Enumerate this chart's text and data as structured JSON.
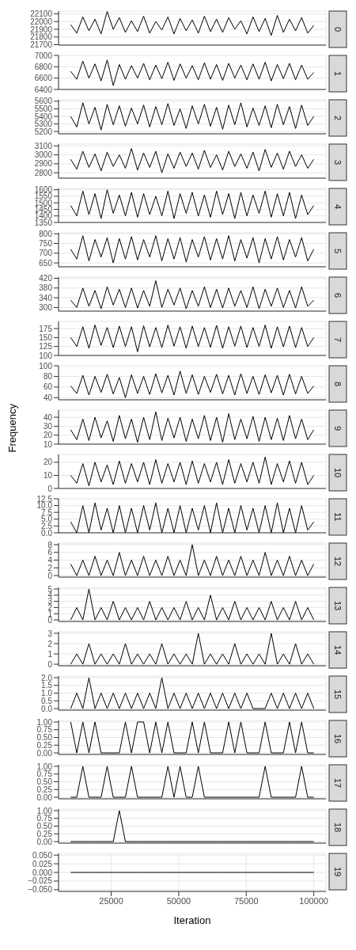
{
  "chart_data": [
    {
      "type": "line",
      "annotations": [
        "0"
      ],
      "color": "#000000",
      "xlim": [
        5500,
        104500
      ],
      "xticks": [
        25000,
        50000,
        75000,
        100000
      ],
      "ylim": [
        21695,
        22135
      ],
      "yticks": [
        21700,
        21800,
        21900,
        22000,
        22100
      ],
      "grid": true,
      "tick_labels": "y",
      "x": [
        10000,
        12250,
        14500,
        16750,
        19000,
        21250,
        23500,
        25750,
        28000,
        30250,
        32500,
        34750,
        37000,
        39250,
        41500,
        43750,
        46000,
        48250,
        50500,
        52750,
        55000,
        57250,
        59500,
        61750,
        64000,
        66250,
        68500,
        70750,
        73000,
        75250,
        77500,
        79750,
        82000,
        84250,
        86500,
        88750,
        91000,
        93250,
        95500,
        97750,
        100000
      ],
      "values": [
        21960,
        21850,
        22060,
        21880,
        22030,
        21840,
        22130,
        21900,
        22050,
        21860,
        22010,
        21870,
        22070,
        21850,
        22000,
        21890,
        22060,
        21840,
        22040,
        21880,
        22020,
        21850,
        22070,
        21870,
        22030,
        21860,
        22050,
        21900,
        22010,
        21840,
        22060,
        21870,
        22040,
        21820,
        22080,
        21860,
        22030,
        21880,
        22050,
        21850,
        21950
      ]
    },
    {
      "type": "line",
      "annotations": [
        "1"
      ],
      "color": "#000000",
      "xlim": [
        5500,
        104500
      ],
      "xticks": [
        25000,
        50000,
        75000,
        100000
      ],
      "ylim": [
        6400,
        7000
      ],
      "yticks": [
        6400,
        6600,
        6800,
        7000
      ],
      "grid": true,
      "tick_labels": "y",
      "x": [
        10000,
        12250,
        14500,
        16750,
        19000,
        21250,
        23500,
        25750,
        28000,
        30250,
        32500,
        34750,
        37000,
        39250,
        41500,
        43750,
        46000,
        48250,
        50500,
        52750,
        55000,
        57250,
        59500,
        61750,
        64000,
        66250,
        68500,
        70750,
        73000,
        75250,
        77500,
        79750,
        82000,
        84250,
        86500,
        88750,
        91000,
        93250,
        95500,
        97750,
        100000
      ],
      "values": [
        6720,
        6580,
        6900,
        6600,
        6850,
        6550,
        6920,
        6470,
        6840,
        6580,
        6820,
        6600,
        6860,
        6570,
        6830,
        6590,
        6880,
        6560,
        6850,
        6600,
        6820,
        6570,
        6870,
        6580,
        6840,
        6560,
        6860,
        6600,
        6830,
        6570,
        6850,
        6580,
        6880,
        6550,
        6840,
        6590,
        6860,
        6570,
        6830,
        6580,
        6700
      ]
    },
    {
      "type": "line",
      "annotations": [
        "2"
      ],
      "color": "#000000",
      "xlim": [
        5500,
        104500
      ],
      "xticks": [
        25000,
        50000,
        75000,
        100000
      ],
      "ylim": [
        5170,
        5620
      ],
      "yticks": [
        5200,
        5300,
        5400,
        5500,
        5600
      ],
      "grid": true,
      "tick_labels": "y",
      "x": [
        10000,
        12250,
        14500,
        16750,
        19000,
        21250,
        23500,
        25750,
        28000,
        30250,
        32500,
        34750,
        37000,
        39250,
        41500,
        43750,
        46000,
        48250,
        50500,
        52750,
        55000,
        57250,
        59500,
        61750,
        64000,
        66250,
        68500,
        70750,
        73000,
        75250,
        77500,
        79750,
        82000,
        84250,
        86500,
        88750,
        91000,
        93250,
        95500,
        97750,
        100000
      ],
      "values": [
        5400,
        5260,
        5580,
        5300,
        5520,
        5220,
        5560,
        5290,
        5540,
        5270,
        5510,
        5300,
        5550,
        5260,
        5530,
        5290,
        5570,
        5280,
        5500,
        5240,
        5540,
        5300,
        5560,
        5270,
        5520,
        5230,
        5550,
        5290,
        5580,
        5260,
        5510,
        5280,
        5540,
        5250,
        5560,
        5290,
        5530,
        5240,
        5550,
        5280,
        5400
      ]
    },
    {
      "type": "line",
      "annotations": [
        "3"
      ],
      "color": "#000000",
      "xlim": [
        5500,
        104500
      ],
      "xticks": [
        25000,
        50000,
        75000,
        100000
      ],
      "ylim": [
        2740,
        3120
      ],
      "yticks": [
        2800,
        2900,
        3000,
        3100
      ],
      "grid": true,
      "tick_labels": "y",
      "x": [
        10000,
        12250,
        14500,
        16750,
        19000,
        21250,
        23500,
        25750,
        28000,
        30250,
        32500,
        34750,
        37000,
        39250,
        41500,
        43750,
        46000,
        48250,
        50500,
        52750,
        55000,
        57250,
        59500,
        61750,
        64000,
        66250,
        68500,
        70750,
        73000,
        75250,
        77500,
        79750,
        82000,
        84250,
        86500,
        88750,
        91000,
        93250,
        95500,
        97750,
        100000
      ],
      "values": [
        2950,
        2840,
        3040,
        2860,
        3010,
        2820,
        3030,
        2870,
        3000,
        2850,
        3070,
        2830,
        3020,
        2860,
        3040,
        2800,
        3010,
        2850,
        3030,
        2870,
        3020,
        2840,
        3050,
        2860,
        3000,
        2830,
        3040,
        2870,
        3010,
        2850,
        3030,
        2820,
        3060,
        2860,
        3020,
        2840,
        3040,
        2870,
        3000,
        2850,
        2950
      ]
    },
    {
      "type": "line",
      "annotations": [
        "4"
      ],
      "color": "#000000",
      "xlim": [
        5500,
        104500
      ],
      "xticks": [
        25000,
        50000,
        75000,
        100000
      ],
      "ylim": [
        1350,
        1610
      ],
      "yticks": [
        1350,
        1400,
        1450,
        1500,
        1550,
        1600
      ],
      "grid": true,
      "tick_labels": "y",
      "x": [
        10000,
        12250,
        14500,
        16750,
        19000,
        21250,
        23500,
        25750,
        28000,
        30250,
        32500,
        34750,
        37000,
        39250,
        41500,
        43750,
        46000,
        48250,
        50500,
        52750,
        55000,
        57250,
        59500,
        61750,
        64000,
        66250,
        68500,
        70750,
        73000,
        75250,
        77500,
        79750,
        82000,
        84250,
        86500,
        88750,
        91000,
        93250,
        95500,
        97750,
        100000
      ],
      "values": [
        1480,
        1400,
        1590,
        1410,
        1570,
        1380,
        1600,
        1420,
        1560,
        1400,
        1580,
        1390,
        1570,
        1410,
        1550,
        1400,
        1590,
        1380,
        1570,
        1420,
        1580,
        1400,
        1560,
        1390,
        1590,
        1410,
        1570,
        1380,
        1580,
        1400,
        1560,
        1420,
        1590,
        1390,
        1570,
        1400,
        1580,
        1380,
        1560,
        1410,
        1480
      ]
    },
    {
      "type": "line",
      "annotations": [
        "5"
      ],
      "color": "#000000",
      "xlim": [
        5500,
        104500
      ],
      "xticks": [
        25000,
        50000,
        75000,
        100000
      ],
      "ylim": [
        630,
        805
      ],
      "yticks": [
        650,
        700,
        750,
        800
      ],
      "grid": true,
      "tick_labels": "y",
      "x": [
        10000,
        12250,
        14500,
        16750,
        19000,
        21250,
        23500,
        25750,
        28000,
        30250,
        32500,
        34750,
        37000,
        39250,
        41500,
        43750,
        46000,
        48250,
        50500,
        52750,
        55000,
        57250,
        59500,
        61750,
        64000,
        66250,
        68500,
        70750,
        73000,
        75250,
        77500,
        79750,
        82000,
        84250,
        86500,
        88750,
        91000,
        93250,
        95500,
        97750,
        100000
      ],
      "values": [
        720,
        670,
        790,
        660,
        770,
        680,
        780,
        650,
        775,
        670,
        785,
        665,
        770,
        680,
        790,
        660,
        775,
        670,
        780,
        655,
        770,
        680,
        785,
        665,
        775,
        670,
        790,
        660,
        770,
        675,
        780,
        650,
        775,
        670,
        785,
        665,
        770,
        680,
        780,
        660,
        720
      ]
    },
    {
      "type": "line",
      "annotations": [
        "6"
      ],
      "color": "#000000",
      "xlim": [
        5500,
        104500
      ],
      "xticks": [
        25000,
        50000,
        75000,
        100000
      ],
      "ylim": [
        285,
        425
      ],
      "yticks": [
        300,
        340,
        380,
        420
      ],
      "grid": true,
      "tick_labels": "y",
      "x": [
        10000,
        12250,
        14500,
        16750,
        19000,
        21250,
        23500,
        25750,
        28000,
        30250,
        32500,
        34750,
        37000,
        39250,
        41500,
        43750,
        46000,
        48250,
        50500,
        52750,
        55000,
        57250,
        59500,
        61750,
        64000,
        66250,
        68500,
        70750,
        73000,
        75250,
        77500,
        79750,
        82000,
        84250,
        86500,
        88750,
        91000,
        93250,
        95500,
        97750,
        100000
      ],
      "values": [
        330,
        300,
        380,
        305,
        370,
        295,
        385,
        310,
        375,
        300,
        380,
        298,
        370,
        305,
        410,
        300,
        375,
        310,
        380,
        295,
        370,
        305,
        385,
        300,
        375,
        298,
        380,
        305,
        370,
        300,
        385,
        295,
        375,
        305,
        380,
        300,
        370,
        298,
        385,
        305,
        330
      ]
    },
    {
      "type": "line",
      "annotations": [
        "7"
      ],
      "color": "#000000",
      "xlim": [
        5500,
        104500
      ],
      "xticks": [
        25000,
        50000,
        75000,
        100000
      ],
      "ylim": [
        100,
        195
      ],
      "yticks": [
        100,
        125,
        150,
        175
      ],
      "grid": true,
      "tick_labels": "y",
      "x": [
        10000,
        12250,
        14500,
        16750,
        19000,
        21250,
        23500,
        25750,
        28000,
        30250,
        32500,
        34750,
        37000,
        39250,
        41500,
        43750,
        46000,
        48250,
        50500,
        52750,
        55000,
        57250,
        59500,
        61750,
        64000,
        66250,
        68500,
        70750,
        73000,
        75250,
        77500,
        79750,
        82000,
        84250,
        86500,
        88750,
        91000,
        93250,
        95500,
        97750,
        100000
      ],
      "values": [
        150,
        125,
        180,
        120,
        185,
        128,
        178,
        122,
        182,
        125,
        180,
        110,
        183,
        124,
        178,
        122,
        185,
        126,
        180,
        120,
        182,
        125,
        178,
        123,
        184,
        120,
        180,
        126,
        182,
        122,
        178,
        125,
        185,
        120,
        180,
        124,
        182,
        122,
        178,
        125,
        150
      ]
    },
    {
      "type": "line",
      "annotations": [
        "8"
      ],
      "color": "#000000",
      "xlim": [
        5500,
        104500
      ],
      "xticks": [
        25000,
        50000,
        75000,
        100000
      ],
      "ylim": [
        36,
        100
      ],
      "yticks": [
        40,
        60,
        80,
        100
      ],
      "grid": true,
      "tick_labels": "y",
      "x": [
        10000,
        12250,
        14500,
        16750,
        19000,
        21250,
        23500,
        25750,
        28000,
        30250,
        32500,
        34750,
        37000,
        39250,
        41500,
        43750,
        46000,
        48250,
        50500,
        52750,
        55000,
        57250,
        59500,
        61750,
        64000,
        66250,
        68500,
        70750,
        73000,
        75250,
        77500,
        79750,
        82000,
        84250,
        86500,
        88750,
        91000,
        93250,
        95500,
        97750,
        100000
      ],
      "values": [
        62,
        48,
        82,
        45,
        80,
        50,
        84,
        47,
        78,
        40,
        83,
        48,
        80,
        46,
        85,
        49,
        82,
        45,
        90,
        48,
        83,
        46,
        80,
        50,
        84,
        47,
        82,
        45,
        85,
        48,
        80,
        46,
        83,
        49,
        82,
        45,
        84,
        47,
        80,
        48,
        62
      ]
    },
    {
      "type": "line",
      "annotations": [
        "9"
      ],
      "ylabel": "Frequency",
      "color": "#000000",
      "xlim": [
        5500,
        104500
      ],
      "xticks": [
        25000,
        50000,
        75000,
        100000
      ],
      "ylim": [
        10,
        48
      ],
      "yticks": [
        10,
        20,
        30,
        40
      ],
      "grid": true,
      "tick_labels": "y",
      "x": [
        10000,
        12250,
        14500,
        16750,
        19000,
        21250,
        23500,
        25750,
        28000,
        30250,
        32500,
        34750,
        37000,
        39250,
        41500,
        43750,
        46000,
        48250,
        50500,
        52750,
        55000,
        57250,
        59500,
        61750,
        64000,
        66250,
        68500,
        70750,
        73000,
        75250,
        77500,
        79750,
        82000,
        84250,
        86500,
        88750,
        91000,
        93250,
        95500,
        97750,
        100000
      ],
      "values": [
        26,
        15,
        38,
        14,
        40,
        17,
        36,
        13,
        42,
        16,
        38,
        12,
        40,
        15,
        46,
        14,
        39,
        17,
        40,
        13,
        38,
        16,
        42,
        14,
        40,
        12,
        44,
        15,
        38,
        16,
        41,
        13,
        40,
        15,
        39,
        14,
        42,
        16,
        38,
        15,
        26
      ]
    },
    {
      "type": "line",
      "annotations": [
        "10"
      ],
      "color": "#000000",
      "xlim": [
        5500,
        104500
      ],
      "xticks": [
        25000,
        50000,
        75000,
        100000
      ],
      "ylim": [
        0,
        26
      ],
      "yticks": [
        0,
        10,
        20
      ],
      "grid": true,
      "tick_labels": "y",
      "x": [
        10000,
        12250,
        14500,
        16750,
        19000,
        21250,
        23500,
        25750,
        28000,
        30250,
        32500,
        34750,
        37000,
        39250,
        41500,
        43750,
        46000,
        48250,
        50500,
        52750,
        55000,
        57250,
        59500,
        61750,
        64000,
        66250,
        68500,
        70750,
        73000,
        75250,
        77500,
        79750,
        82000,
        84250,
        86500,
        88750,
        91000,
        93250,
        95500,
        97750,
        100000
      ],
      "values": [
        10,
        4,
        19,
        2,
        20,
        5,
        18,
        3,
        21,
        4,
        19,
        5,
        20,
        3,
        22,
        4,
        19,
        5,
        20,
        3,
        21,
        4,
        19,
        5,
        20,
        3,
        22,
        4,
        19,
        5,
        20,
        4,
        24,
        3,
        19,
        5,
        21,
        4,
        20,
        3,
        10
      ]
    },
    {
      "type": "line",
      "annotations": [
        "11"
      ],
      "color": "#000000",
      "xlim": [
        5500,
        104500
      ],
      "xticks": [
        25000,
        50000,
        75000,
        100000
      ],
      "ylim": [
        0,
        12.5
      ],
      "yticks": [
        {
          "value": 0,
          "label": "0.0"
        },
        {
          "value": 2.5,
          "label": "2.5"
        },
        {
          "value": 5,
          "label": "5.0"
        },
        {
          "value": 7.5,
          "label": "7.5"
        },
        {
          "value": 10,
          "label": "10.0"
        },
        {
          "value": 12.5,
          "label": "12.5"
        }
      ],
      "grid": true,
      "tick_labels": "y",
      "x": [
        10000,
        12250,
        14500,
        16750,
        19000,
        21250,
        23500,
        25750,
        28000,
        30250,
        32500,
        34750,
        37000,
        39250,
        41500,
        43750,
        46000,
        48250,
        50500,
        52750,
        55000,
        57250,
        59500,
        61750,
        64000,
        66250,
        68500,
        70750,
        73000,
        75250,
        77500,
        79750,
        82000,
        84250,
        86500,
        88750,
        91000,
        93250,
        95500,
        97750,
        100000
      ],
      "values": [
        4,
        0,
        10,
        0,
        11,
        1,
        9,
        0,
        10,
        0,
        9,
        0,
        10,
        1,
        11,
        0,
        9,
        0,
        10,
        0,
        9,
        1,
        10,
        0,
        11,
        0,
        9,
        0,
        10,
        1,
        9,
        0,
        10,
        0,
        11,
        0,
        9,
        0,
        10,
        1,
        4
      ]
    },
    {
      "type": "line",
      "annotations": [
        "12"
      ],
      "color": "#000000",
      "xlim": [
        5500,
        104500
      ],
      "xticks": [
        25000,
        50000,
        75000,
        100000
      ],
      "ylim": [
        -0.4,
        8.4
      ],
      "yticks": [
        0,
        2,
        4,
        6,
        8
      ],
      "grid": true,
      "tick_labels": "y",
      "x": [
        10000,
        12250,
        14500,
        16750,
        19000,
        21250,
        23500,
        25750,
        28000,
        30250,
        32500,
        34750,
        37000,
        39250,
        41500,
        43750,
        46000,
        48250,
        50500,
        52750,
        55000,
        57250,
        59500,
        61750,
        64000,
        66250,
        68500,
        70750,
        73000,
        75250,
        77500,
        79750,
        82000,
        84250,
        86500,
        88750,
        91000,
        93250,
        95500,
        97750,
        100000
      ],
      "values": [
        3,
        0,
        4,
        0,
        5,
        0,
        4,
        0,
        6,
        0,
        4,
        0,
        5,
        0,
        4,
        0,
        5,
        0,
        4,
        0,
        8,
        0,
        4,
        0,
        5,
        0,
        4,
        0,
        5,
        0,
        4,
        0,
        6,
        0,
        4,
        0,
        5,
        0,
        4,
        0,
        3
      ]
    },
    {
      "type": "line",
      "annotations": [
        "13"
      ],
      "color": "#000000",
      "xlim": [
        5500,
        104500
      ],
      "xticks": [
        25000,
        50000,
        75000,
        100000
      ],
      "ylim": [
        -0.25,
        5.25
      ],
      "yticks": [
        0,
        1,
        2,
        3,
        4,
        5
      ],
      "grid": true,
      "tick_labels": "y",
      "x": [
        10000,
        12250,
        14500,
        16750,
        19000,
        21250,
        23500,
        25750,
        28000,
        30250,
        32500,
        34750,
        37000,
        39250,
        41500,
        43750,
        46000,
        48250,
        50500,
        52750,
        55000,
        57250,
        59500,
        61750,
        64000,
        66250,
        68500,
        70750,
        73000,
        75250,
        77500,
        79750,
        82000,
        84250,
        86500,
        88750,
        91000,
        93250,
        95500,
        97750,
        100000
      ],
      "values": [
        0,
        2,
        0,
        5,
        0,
        2,
        0,
        3,
        0,
        2,
        0,
        2,
        0,
        3,
        0,
        2,
        0,
        2,
        0,
        3,
        0,
        2,
        0,
        4,
        0,
        2,
        0,
        3,
        0,
        2,
        0,
        2,
        0,
        3,
        0,
        2,
        0,
        3,
        0,
        2,
        0
      ]
    },
    {
      "type": "line",
      "annotations": [
        "14"
      ],
      "color": "#000000",
      "xlim": [
        5500,
        104500
      ],
      "xticks": [
        25000,
        50000,
        75000,
        100000
      ],
      "ylim": [
        -0.15,
        3.15
      ],
      "yticks": [
        0,
        1,
        2,
        3
      ],
      "grid": true,
      "tick_labels": "y",
      "x": [
        10000,
        12250,
        14500,
        16750,
        19000,
        21250,
        23500,
        25750,
        28000,
        30250,
        32500,
        34750,
        37000,
        39250,
        41500,
        43750,
        46000,
        48250,
        50500,
        52750,
        55000,
        57250,
        59500,
        61750,
        64000,
        66250,
        68500,
        70750,
        73000,
        75250,
        77500,
        79750,
        82000,
        84250,
        86500,
        88750,
        91000,
        93250,
        95500,
        97750,
        100000
      ],
      "values": [
        0,
        1,
        0,
        2,
        0,
        1,
        0,
        1,
        0,
        2,
        0,
        1,
        0,
        1,
        0,
        2,
        0,
        1,
        0,
        1,
        0,
        3,
        0,
        1,
        0,
        1,
        0,
        2,
        0,
        1,
        0,
        1,
        0,
        3,
        0,
        1,
        0,
        2,
        0,
        1,
        0
      ]
    },
    {
      "type": "line",
      "annotations": [
        "15"
      ],
      "color": "#000000",
      "xlim": [
        5500,
        104500
      ],
      "xticks": [
        25000,
        50000,
        75000,
        100000
      ],
      "ylim": [
        -0.1,
        2.1
      ],
      "yticks": [
        {
          "value": 0,
          "label": "0.0"
        },
        {
          "value": 0.5,
          "label": "0.5"
        },
        {
          "value": 1,
          "label": "1.0"
        },
        {
          "value": 1.5,
          "label": "1.5"
        },
        {
          "value": 2,
          "label": "2.0"
        }
      ],
      "grid": true,
      "tick_labels": "y",
      "x": [
        10000,
        12250,
        14500,
        16750,
        19000,
        21250,
        23500,
        25750,
        28000,
        30250,
        32500,
        34750,
        37000,
        39250,
        41500,
        43750,
        46000,
        48250,
        50500,
        52750,
        55000,
        57250,
        59500,
        61750,
        64000,
        66250,
        68500,
        70750,
        73000,
        75250,
        77500,
        79750,
        82000,
        84250,
        86500,
        88750,
        91000,
        93250,
        95500,
        97750,
        100000
      ],
      "values": [
        0,
        1,
        0,
        2,
        0,
        1,
        0,
        1,
        0,
        1,
        0,
        1,
        0,
        1,
        0,
        2,
        0,
        1,
        0,
        1,
        0,
        1,
        0,
        1,
        0,
        1,
        0,
        1,
        0,
        1,
        0,
        0,
        0,
        1,
        0,
        1,
        0,
        1,
        0,
        1,
        0
      ]
    },
    {
      "type": "line",
      "annotations": [
        "16"
      ],
      "color": "#000000",
      "xlim": [
        5500,
        104500
      ],
      "xticks": [
        25000,
        50000,
        75000,
        100000
      ],
      "ylim": [
        -0.05,
        1.05
      ],
      "yticks": [
        {
          "value": 0,
          "label": "0.00"
        },
        {
          "value": 0.25,
          "label": "0.25"
        },
        {
          "value": 0.5,
          "label": "0.50"
        },
        {
          "value": 0.75,
          "label": "0.75"
        },
        {
          "value": 1,
          "label": "1.00"
        }
      ],
      "grid": true,
      "tick_labels": "y",
      "x": [
        10000,
        12250,
        14500,
        16750,
        19000,
        21250,
        23500,
        25750,
        28000,
        30250,
        32500,
        34750,
        37000,
        39250,
        41500,
        43750,
        46000,
        48250,
        50500,
        52750,
        55000,
        57250,
        59500,
        61750,
        64000,
        66250,
        68500,
        70750,
        73000,
        75250,
        77500,
        79750,
        82000,
        84250,
        86500,
        88750,
        91000,
        93250,
        95500,
        97750,
        100000
      ],
      "values": [
        1,
        0,
        1,
        0,
        1,
        0,
        0,
        0,
        0,
        1,
        0,
        1,
        1,
        0,
        1,
        0,
        1,
        0,
        0,
        0,
        1,
        0,
        1,
        0,
        0,
        0,
        1,
        0,
        1,
        0,
        0,
        0,
        1,
        0,
        0,
        0,
        1,
        0,
        1,
        0,
        0
      ]
    },
    {
      "type": "line",
      "annotations": [
        "17"
      ],
      "color": "#000000",
      "xlim": [
        5500,
        104500
      ],
      "xticks": [
        25000,
        50000,
        75000,
        100000
      ],
      "ylim": [
        -0.05,
        1.05
      ],
      "yticks": [
        {
          "value": 0,
          "label": "0.00"
        },
        {
          "value": 0.25,
          "label": "0.25"
        },
        {
          "value": 0.5,
          "label": "0.50"
        },
        {
          "value": 0.75,
          "label": "0.75"
        },
        {
          "value": 1,
          "label": "1.00"
        }
      ],
      "grid": true,
      "tick_labels": "y",
      "x": [
        10000,
        12250,
        14500,
        16750,
        19000,
        21250,
        23500,
        25750,
        28000,
        30250,
        32500,
        34750,
        37000,
        39250,
        41500,
        43750,
        46000,
        48250,
        50500,
        52750,
        55000,
        57250,
        59500,
        61750,
        64000,
        66250,
        68500,
        70750,
        73000,
        75250,
        77500,
        79750,
        82000,
        84250,
        86500,
        88750,
        91000,
        93250,
        95500,
        97750,
        100000
      ],
      "values": [
        0,
        0,
        1,
        0,
        0,
        0,
        1,
        0,
        0,
        0,
        1,
        0,
        0,
        0,
        0,
        0,
        1,
        0,
        1,
        0,
        0,
        1,
        0,
        0,
        0,
        0,
        0,
        0,
        0,
        0,
        0,
        0,
        1,
        0,
        0,
        0,
        0,
        0,
        1,
        0,
        0
      ]
    },
    {
      "type": "line",
      "annotations": [
        "18"
      ],
      "color": "#000000",
      "xlim": [
        5500,
        104500
      ],
      "xticks": [
        25000,
        50000,
        75000,
        100000
      ],
      "ylim": [
        -0.05,
        1.05
      ],
      "yticks": [
        {
          "value": 0,
          "label": "0.00"
        },
        {
          "value": 0.25,
          "label": "0.25"
        },
        {
          "value": 0.5,
          "label": "0.50"
        },
        {
          "value": 0.75,
          "label": "0.75"
        },
        {
          "value": 1,
          "label": "1.00"
        }
      ],
      "grid": true,
      "tick_labels": "y",
      "x": [
        10000,
        12250,
        14500,
        16750,
        19000,
        21250,
        23500,
        25750,
        28000,
        30250,
        32500,
        34750,
        37000,
        39250,
        41500,
        43750,
        46000,
        48250,
        50500,
        52750,
        55000,
        57250,
        59500,
        61750,
        64000,
        66250,
        68500,
        70750,
        73000,
        75250,
        77500,
        79750,
        82000,
        84250,
        86500,
        88750,
        91000,
        93250,
        95500,
        97750,
        100000
      ],
      "values": [
        0,
        0,
        0,
        0,
        0,
        0,
        0,
        0,
        1,
        0,
        0,
        0,
        0,
        0,
        0,
        0,
        0,
        0,
        0,
        0,
        0,
        0,
        0,
        0,
        0,
        0,
        0,
        0,
        0,
        0,
        0,
        0,
        0,
        0,
        0,
        0,
        0,
        0,
        0,
        0,
        0
      ]
    },
    {
      "type": "line",
      "annotations": [
        "19"
      ],
      "xlabel": "Iteration",
      "color": "#000000",
      "xlim": [
        5500,
        104500
      ],
      "xticks": [
        25000,
        50000,
        75000,
        100000
      ],
      "ylim": [
        -0.055,
        0.055
      ],
      "yticks": [
        {
          "value": -0.05,
          "label": "−0.050"
        },
        {
          "value": -0.025,
          "label": "−0.025"
        },
        {
          "value": 0,
          "label": "0.000"
        },
        {
          "value": 0.025,
          "label": "0.025"
        },
        {
          "value": 0.05,
          "label": "0.050"
        }
      ],
      "grid": true,
      "x": [
        10000,
        12250,
        14500,
        16750,
        19000,
        21250,
        23500,
        25750,
        28000,
        30250,
        32500,
        34750,
        37000,
        39250,
        41500,
        43750,
        46000,
        48250,
        50500,
        52750,
        55000,
        57250,
        59500,
        61750,
        64000,
        66250,
        68500,
        70750,
        73000,
        75250,
        77500,
        79750,
        82000,
        84250,
        86500,
        88750,
        91000,
        93250,
        95500,
        97750,
        100000
      ],
      "values": [
        0,
        0,
        0,
        0,
        0,
        0,
        0,
        0,
        0,
        0,
        0,
        0,
        0,
        0,
        0,
        0,
        0,
        0,
        0,
        0,
        0,
        0,
        0,
        0,
        0,
        0,
        0,
        0,
        0,
        0,
        0,
        0,
        0,
        0,
        0,
        0,
        0,
        0,
        0,
        0,
        0
      ]
    }
  ]
}
